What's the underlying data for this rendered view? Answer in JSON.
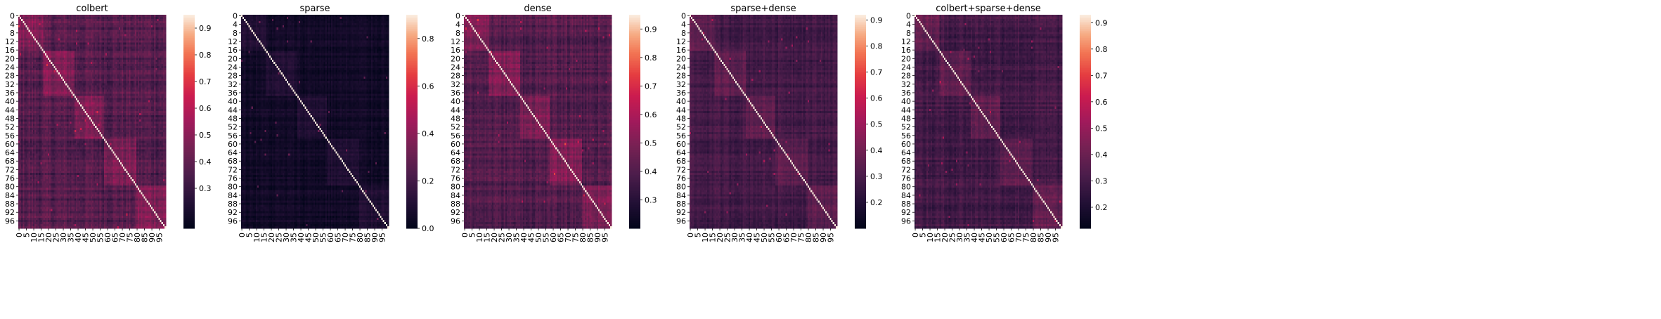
{
  "chart_data": [
    {
      "type": "heatmap",
      "title": "colbert",
      "n": 100,
      "xtick_labels": [
        "0",
        "5",
        "10",
        "15",
        "20",
        "25",
        "30",
        "35",
        "40",
        "45",
        "50",
        "55",
        "60",
        "65",
        "70",
        "75",
        "80",
        "85",
        "90",
        "95"
      ],
      "ytick_labels": [
        "0",
        "4",
        "8",
        "12",
        "16",
        "20",
        "24",
        "28",
        "32",
        "36",
        "40",
        "44",
        "48",
        "52",
        "56",
        "60",
        "64",
        "68",
        "72",
        "76",
        "80",
        "84",
        "88",
        "92",
        "96"
      ],
      "colorbar": {
        "vmin": 0.15,
        "vmax": 0.95,
        "ticks": [
          0.3,
          0.4,
          0.5,
          0.6,
          0.7,
          0.8,
          0.9
        ]
      },
      "value_model": {
        "bg": 0.37,
        "block": 0.47,
        "noise": 0.06,
        "diag": 1.0
      }
    },
    {
      "type": "heatmap",
      "title": "sparse",
      "n": 100,
      "xtick_labels": [
        "0",
        "5",
        "10",
        "15",
        "20",
        "25",
        "30",
        "35",
        "40",
        "45",
        "50",
        "55",
        "60",
        "65",
        "70",
        "75",
        "80",
        "85",
        "90",
        "95"
      ],
      "ytick_labels": [
        "0",
        "4",
        "8",
        "12",
        "16",
        "20",
        "24",
        "28",
        "32",
        "36",
        "40",
        "44",
        "48",
        "52",
        "56",
        "60",
        "64",
        "68",
        "72",
        "76",
        "80",
        "84",
        "88",
        "92",
        "96"
      ],
      "colorbar": {
        "vmin": 0.0,
        "vmax": 0.9,
        "ticks": [
          0.0,
          0.2,
          0.4,
          0.6,
          0.8
        ]
      },
      "value_model": {
        "bg": 0.05,
        "block": 0.1,
        "noise": 0.03,
        "diag": 1.0
      }
    },
    {
      "type": "heatmap",
      "title": "dense",
      "n": 100,
      "xtick_labels": [
        "0",
        "5",
        "10",
        "15",
        "20",
        "25",
        "30",
        "35",
        "40",
        "45",
        "50",
        "55",
        "60",
        "65",
        "70",
        "75",
        "80",
        "85",
        "90",
        "95"
      ],
      "ytick_labels": [
        "0",
        "4",
        "8",
        "12",
        "16",
        "20",
        "24",
        "28",
        "32",
        "36",
        "40",
        "44",
        "48",
        "52",
        "56",
        "60",
        "64",
        "68",
        "72",
        "76",
        "80",
        "84",
        "88",
        "92",
        "96"
      ],
      "colorbar": {
        "vmin": 0.2,
        "vmax": 0.95,
        "ticks": [
          0.3,
          0.4,
          0.5,
          0.6,
          0.7,
          0.8,
          0.9
        ]
      },
      "value_model": {
        "bg": 0.4,
        "block": 0.5,
        "noise": 0.05,
        "diag": 1.0
      }
    },
    {
      "type": "heatmap",
      "title": "sparse+dense",
      "n": 100,
      "xtick_labels": [
        "0",
        "5",
        "10",
        "15",
        "20",
        "25",
        "30",
        "35",
        "40",
        "45",
        "50",
        "55",
        "60",
        "65",
        "70",
        "75",
        "80",
        "85",
        "90",
        "95"
      ],
      "ytick_labels": [
        "0",
        "4",
        "8",
        "12",
        "16",
        "20",
        "24",
        "28",
        "32",
        "36",
        "40",
        "44",
        "48",
        "52",
        "56",
        "60",
        "64",
        "68",
        "72",
        "76",
        "80",
        "84",
        "88",
        "92",
        "96"
      ],
      "colorbar": {
        "vmin": 0.1,
        "vmax": 0.92,
        "ticks": [
          0.2,
          0.3,
          0.4,
          0.5,
          0.6,
          0.7,
          0.8,
          0.9
        ]
      },
      "value_model": {
        "bg": 0.28,
        "block": 0.35,
        "noise": 0.04,
        "diag": 1.0
      }
    },
    {
      "type": "heatmap",
      "title": "colbert+sparse+dense",
      "n": 100,
      "xtick_labels": [
        "0",
        "5",
        "10",
        "15",
        "20",
        "25",
        "30",
        "35",
        "40",
        "45",
        "50",
        "55",
        "60",
        "65",
        "70",
        "75",
        "80",
        "85",
        "90",
        "95"
      ],
      "ytick_labels": [
        "0",
        "4",
        "8",
        "12",
        "16",
        "20",
        "24",
        "28",
        "32",
        "36",
        "40",
        "44",
        "48",
        "52",
        "56",
        "60",
        "64",
        "68",
        "72",
        "76",
        "80",
        "84",
        "88",
        "92",
        "96"
      ],
      "colorbar": {
        "vmin": 0.12,
        "vmax": 0.93,
        "ticks": [
          0.2,
          0.3,
          0.4,
          0.5,
          0.6,
          0.7,
          0.8,
          0.9
        ]
      },
      "value_model": {
        "bg": 0.3,
        "block": 0.38,
        "noise": 0.045,
        "diag": 1.0
      }
    }
  ],
  "shared": {
    "blocks": [
      [
        0,
        16
      ],
      [
        17,
        37
      ],
      [
        38,
        57
      ],
      [
        58,
        79
      ],
      [
        80,
        99
      ]
    ],
    "colormap": "rocket"
  }
}
